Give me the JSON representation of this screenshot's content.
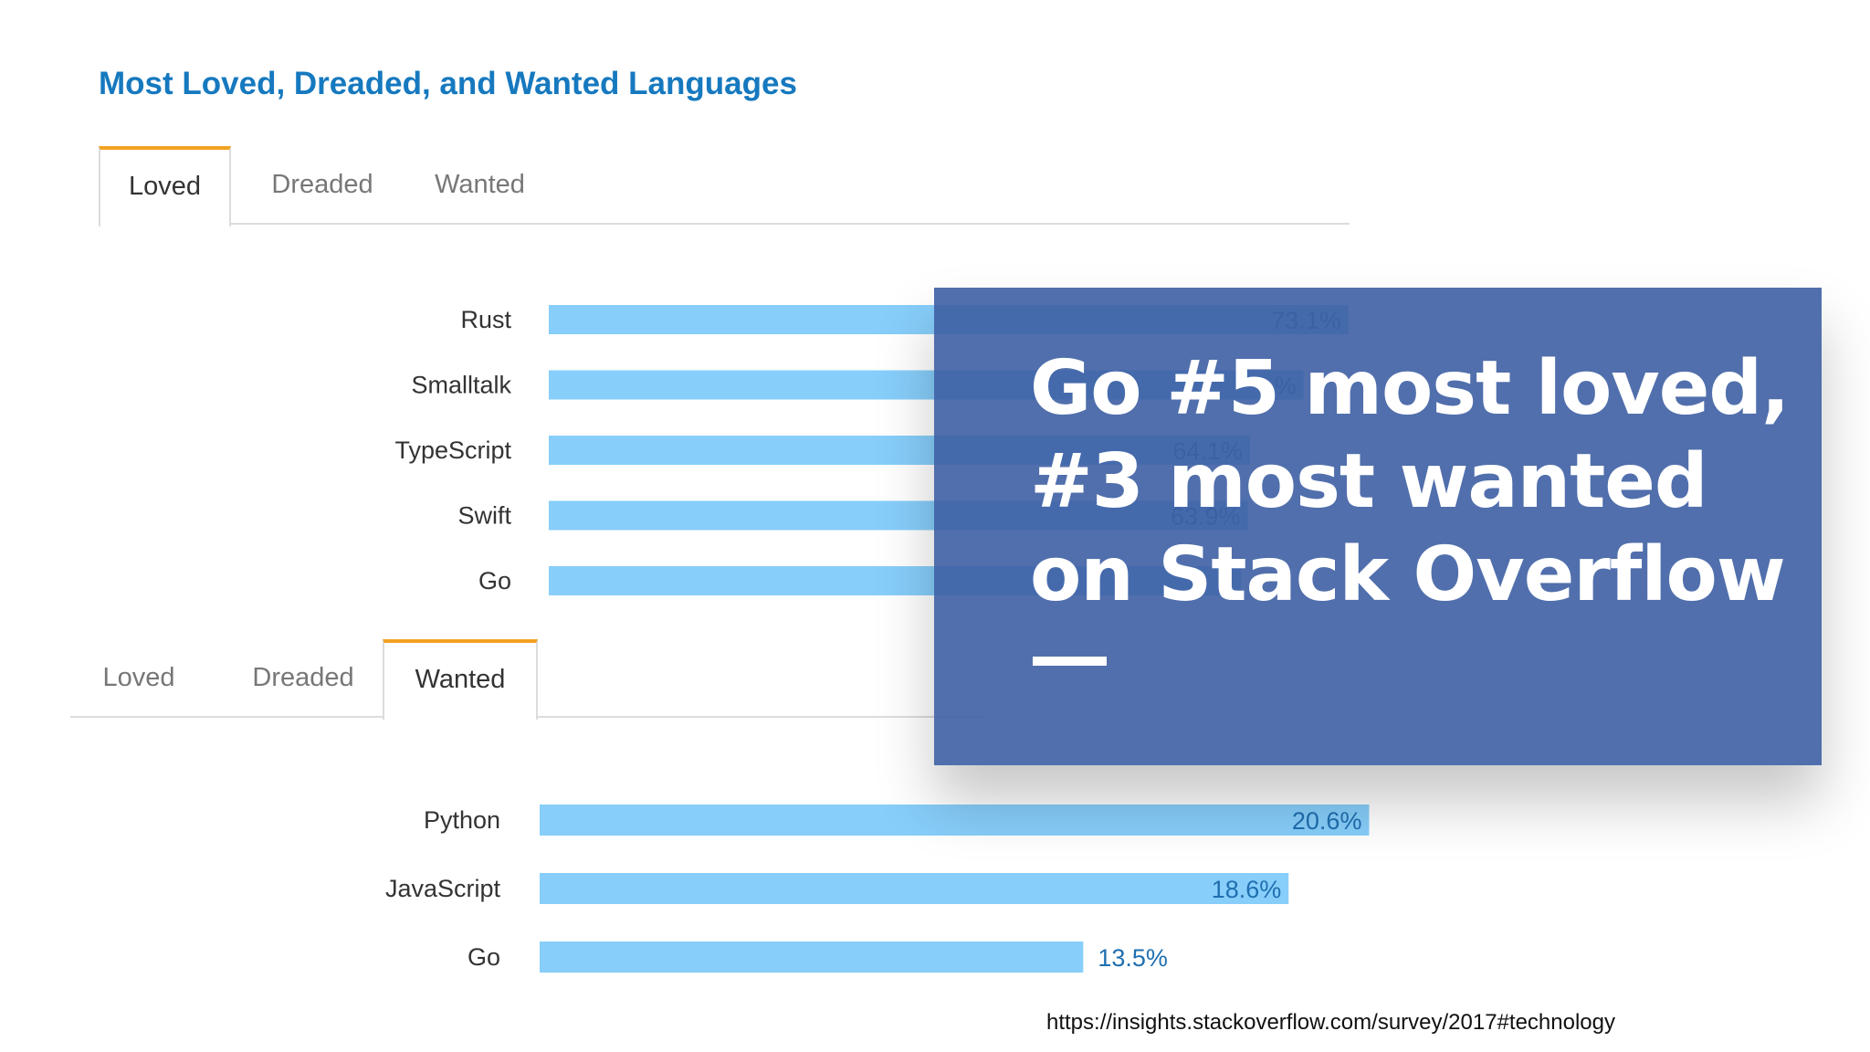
{
  "title": "Most Loved, Dreaded, and Wanted Languages",
  "tabs_top": [
    {
      "label": "Loved",
      "active": true
    },
    {
      "label": "Dreaded",
      "active": false
    },
    {
      "label": "Wanted",
      "active": false
    }
  ],
  "tabs_bottom": [
    {
      "label": "Loved",
      "active": false
    },
    {
      "label": "Dreaded",
      "active": false
    },
    {
      "label": "Wanted",
      "active": true
    }
  ],
  "colors": {
    "title": "#1679bf",
    "tab_active_border": "#f2a122",
    "bar": "#87cefa",
    "value_label": "#1f6fb0",
    "overlay": "#3e5fa3"
  },
  "overlay": {
    "line1": "Go #5 most loved,",
    "line2": "#3 most wanted",
    "line3": "on Stack Overflow"
  },
  "source": "https://insights.stackoverflow.com/survey/2017#technology",
  "chart_data": [
    {
      "type": "bar",
      "orientation": "horizontal",
      "categories": [
        "Rust",
        "Smalltalk",
        "TypeScript",
        "Swift",
        "Go"
      ],
      "values": [
        73.1,
        69.0,
        64.1,
        63.9,
        63.3
      ],
      "value_labels": [
        "73.1%",
        "%",
        "64.1%",
        "63.9%",
        ""
      ]
    },
    {
      "type": "bar",
      "orientation": "horizontal",
      "categories": [
        "Python",
        "JavaScript",
        "Go"
      ],
      "values": [
        20.6,
        18.6,
        13.5
      ],
      "value_labels": [
        "20.6%",
        "18.6%",
        "13.5%"
      ]
    }
  ]
}
